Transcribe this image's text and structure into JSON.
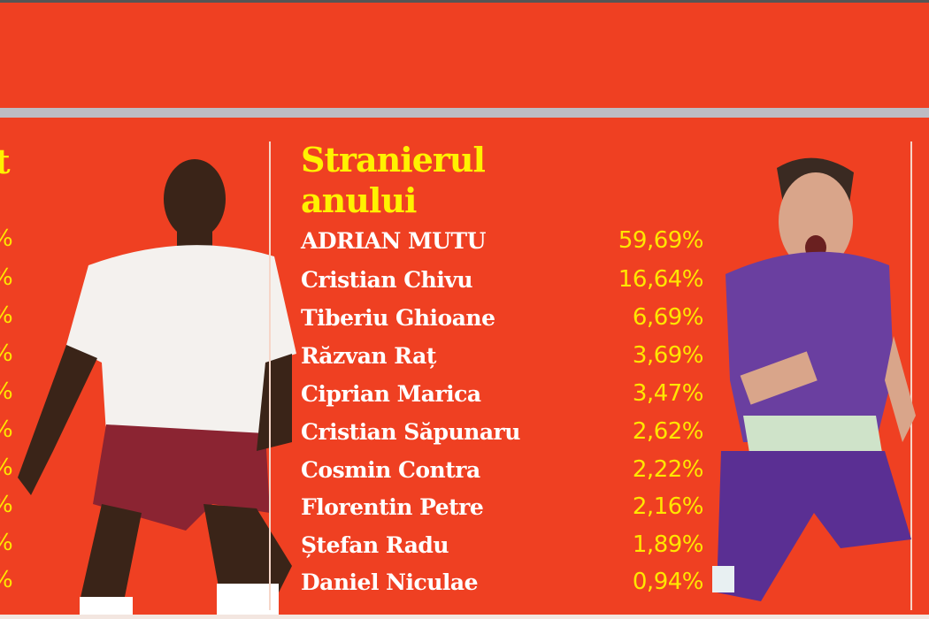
{
  "left_column": {
    "title_fragment": "t",
    "pct_fragments": [
      "%",
      "%",
      "%",
      "%",
      "%",
      "%",
      "%",
      "%",
      "%",
      "%"
    ]
  },
  "section": {
    "title_line1": "Stranierul",
    "title_line2": "anului",
    "rows": [
      {
        "name": "ADRIAN MUTU",
        "pct": "59,69%"
      },
      {
        "name": "Cristian Chivu",
        "pct": "16,64%"
      },
      {
        "name": "Tiberiu Ghioane",
        "pct": "6,69%"
      },
      {
        "name": "Răzvan Raț",
        "pct": "3,69%"
      },
      {
        "name": "Ciprian Marica",
        "pct": "3,47%"
      },
      {
        "name": "Cristian Săpunaru",
        "pct": "2,62%"
      },
      {
        "name": "Cosmin Contra",
        "pct": "2,22%"
      },
      {
        "name": "Florentin Petre",
        "pct": "2,16%"
      },
      {
        "name": "Ștefan Radu",
        "pct": "1,89%"
      },
      {
        "name": "Daniel Niculae",
        "pct": "0,94%"
      }
    ]
  },
  "colors": {
    "background": "#ef4022",
    "title": "#fff200",
    "percent": "#ffe600",
    "names": "#ffffff",
    "bar": "#bdbcc3"
  }
}
